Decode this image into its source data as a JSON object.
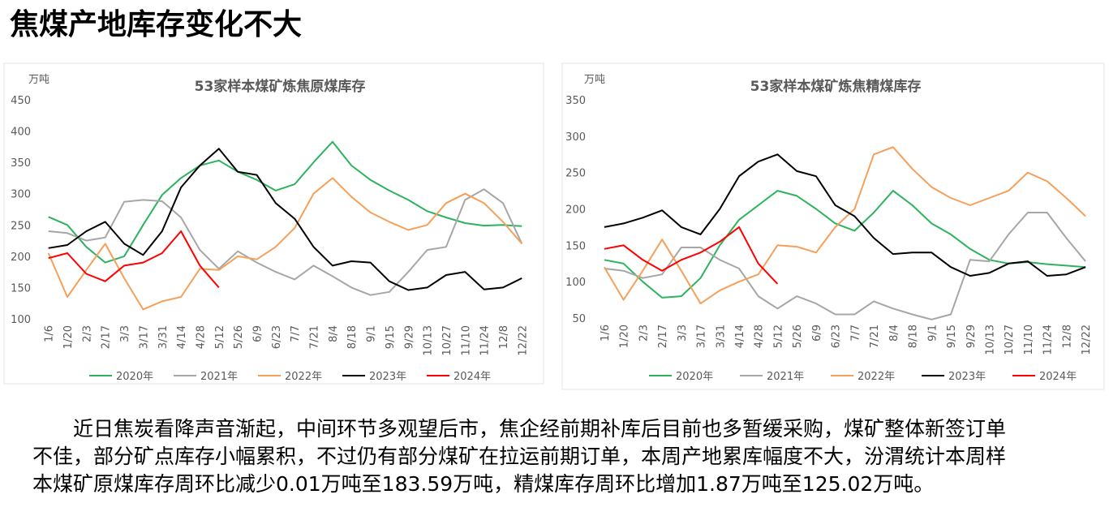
{
  "header": {
    "title": "焦煤产地库存变化不大"
  },
  "chart_data": [
    {
      "type": "line",
      "title": "53家样本煤矿炼焦原煤库存",
      "y_label": "万吨",
      "categories": [
        "1/6",
        "1/20",
        "2/3",
        "2/17",
        "3/3",
        "3/17",
        "3/31",
        "4/14",
        "4/28",
        "5/12",
        "5/26",
        "6/9",
        "6/23",
        "7/7",
        "7/21",
        "8/4",
        "8/18",
        "9/1",
        "9/15",
        "9/29",
        "10/13",
        "10/27",
        "11/10",
        "11/24",
        "12/8",
        "12/22"
      ],
      "ylim": [
        100,
        450
      ],
      "yticks": [
        100,
        150,
        200,
        250,
        300,
        350,
        400,
        450
      ],
      "grid": false,
      "series": [
        {
          "name": "2020年",
          "color": "#2db35d",
          "values": [
            263,
            250,
            215,
            190,
            200,
            250,
            298,
            325,
            345,
            353,
            335,
            322,
            305,
            315,
            350,
            383,
            345,
            322,
            305,
            290,
            272,
            262,
            253,
            249,
            250,
            248
          ]
        },
        {
          "name": "2021年",
          "color": "#a6a6a6",
          "values": [
            240,
            237,
            225,
            230,
            287,
            290,
            288,
            262,
            210,
            180,
            208,
            190,
            175,
            163,
            185,
            168,
            150,
            138,
            143,
            175,
            210,
            215,
            290,
            307,
            285,
            220
          ]
        },
        {
          "name": "2022年",
          "color": "#f5a05a",
          "values": [
            205,
            135,
            178,
            220,
            165,
            115,
            128,
            135,
            180,
            178,
            200,
            195,
            215,
            245,
            300,
            325,
            295,
            270,
            255,
            242,
            250,
            285,
            300,
            285,
            255,
            220
          ]
        },
        {
          "name": "2023年",
          "color": "#000000",
          "values": [
            213,
            218,
            240,
            255,
            220,
            202,
            240,
            310,
            345,
            372,
            335,
            330,
            285,
            260,
            215,
            185,
            192,
            190,
            160,
            146,
            150,
            170,
            175,
            147,
            150,
            165
          ]
        },
        {
          "name": "2024年",
          "color": "#ff0000",
          "values": [
            197,
            205,
            172,
            160,
            185,
            190,
            205,
            240,
            185,
            150,
            null,
            null,
            null,
            null,
            null,
            null,
            null,
            null,
            null,
            null,
            null,
            null,
            null,
            null,
            null,
            null
          ]
        }
      ]
    },
    {
      "type": "line",
      "title": "53家样本煤矿炼焦精煤库存",
      "y_label": "万吨",
      "categories": [
        "1/6",
        "1/20",
        "2/3",
        "2/17",
        "3/3",
        "3/17",
        "3/31",
        "4/14",
        "4/28",
        "5/12",
        "5/26",
        "6/9",
        "6/23",
        "7/7",
        "7/21",
        "8/4",
        "8/18",
        "9/1",
        "9/15",
        "9/29",
        "10/13",
        "10/27",
        "11/10",
        "11/24",
        "12/8",
        "12/22"
      ],
      "ylim": [
        50,
        350
      ],
      "yticks": [
        50,
        100,
        150,
        200,
        250,
        300,
        350
      ],
      "grid": false,
      "series": [
        {
          "name": "2020年",
          "color": "#2db35d",
          "values": [
            130,
            125,
            100,
            78,
            80,
            105,
            150,
            185,
            205,
            225,
            218,
            200,
            180,
            170,
            195,
            225,
            205,
            180,
            165,
            145,
            130,
            125,
            127,
            124,
            122,
            120
          ]
        },
        {
          "name": "2021年",
          "color": "#a6a6a6",
          "values": [
            118,
            115,
            105,
            110,
            147,
            147,
            130,
            118,
            80,
            63,
            80,
            70,
            55,
            55,
            73,
            63,
            55,
            48,
            55,
            130,
            128,
            165,
            195,
            195,
            160,
            128
          ]
        },
        {
          "name": "2022年",
          "color": "#f5a05a",
          "values": [
            120,
            75,
            115,
            158,
            115,
            70,
            88,
            100,
            110,
            150,
            148,
            140,
            175,
            200,
            275,
            285,
            255,
            230,
            215,
            205,
            215,
            225,
            250,
            238,
            215,
            190
          ]
        },
        {
          "name": "2023年",
          "color": "#000000",
          "values": [
            175,
            180,
            188,
            198,
            175,
            165,
            200,
            245,
            265,
            275,
            252,
            245,
            205,
            190,
            160,
            138,
            140,
            140,
            120,
            108,
            112,
            125,
            128,
            108,
            110,
            120
          ]
        },
        {
          "name": "2024年",
          "color": "#ff0000",
          "values": [
            145,
            150,
            130,
            115,
            130,
            140,
            155,
            175,
            125,
            97,
            null,
            null,
            null,
            null,
            null,
            null,
            null,
            null,
            null,
            null,
            null,
            null,
            null,
            null,
            null,
            null
          ]
        }
      ]
    }
  ],
  "paragraph": [
    "近日焦炭看降声音渐起，中间环节多观望后市，焦企经前期补库后目前也多暂缓采购，煤矿整体新签订单",
    "不佳，部分矿点库存小幅累积，不过仍有部分煤矿在拉运前期订单，本周产地累库幅度不大，汾渭统计本周样",
    "本煤矿原煤库存周环比减少0.01万吨至183.59万吨，精煤库存周环比增加1.87万吨至125.02万吨。"
  ]
}
